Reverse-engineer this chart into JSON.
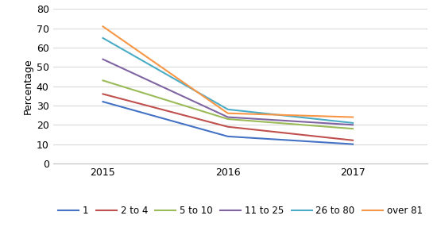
{
  "years": [
    2015,
    2016,
    2017
  ],
  "series": [
    {
      "label": "1",
      "color": "#4472c4",
      "values": [
        32,
        14,
        10
      ]
    },
    {
      "label": "2 to 4",
      "color": "#c0504d",
      "values": [
        36,
        19,
        12
      ]
    },
    {
      "label": "5 to 10",
      "color": "#9bbb59",
      "values": [
        43,
        23,
        18
      ]
    },
    {
      "label": "11 to 25",
      "color": "#8064a2",
      "values": [
        54,
        24,
        20
      ]
    },
    {
      "label": "26 to 80",
      "color": "#4bacc6",
      "values": [
        65,
        28,
        21
      ]
    },
    {
      "label": "over 81",
      "color": "#f79646",
      "values": [
        71,
        26,
        24
      ]
    }
  ],
  "ylabel": "Percentage",
  "ylim": [
    0,
    80
  ],
  "yticks": [
    0,
    10,
    20,
    30,
    40,
    50,
    60,
    70,
    80
  ],
  "background_color": "#ffffff",
  "grid_color": "#d9d9d9",
  "legend_ncol": 6
}
